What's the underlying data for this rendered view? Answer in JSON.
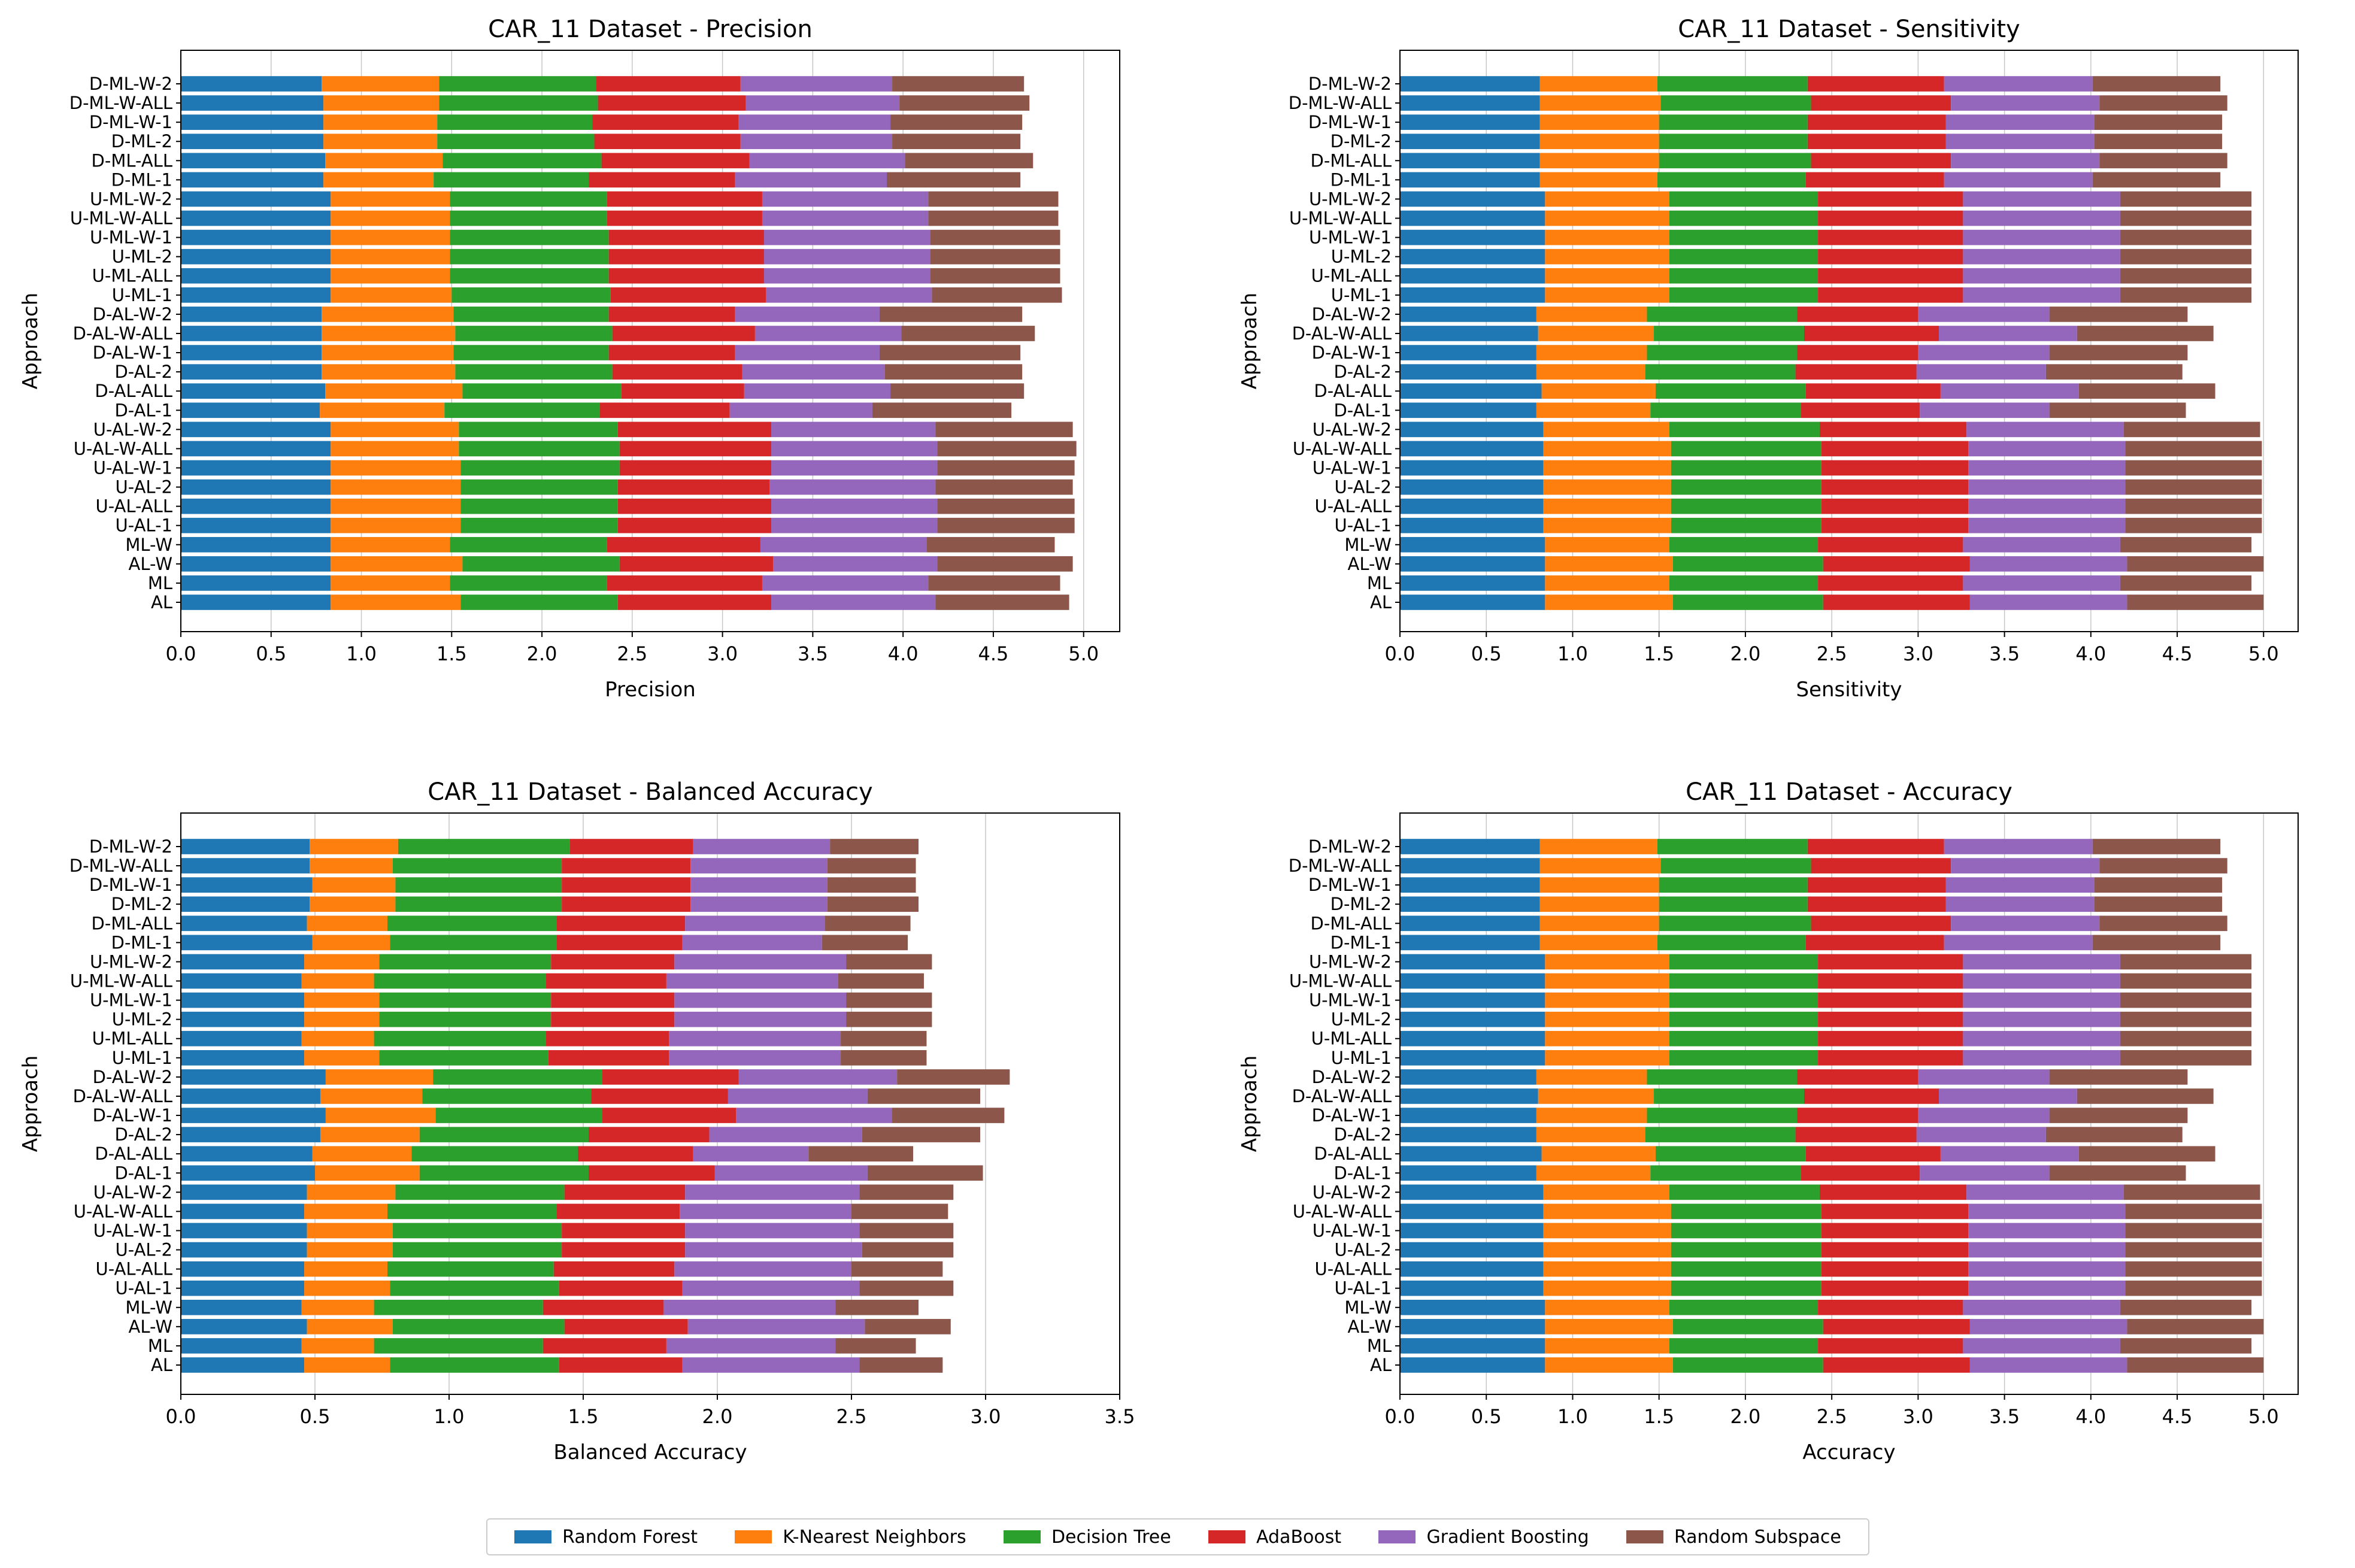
{
  "series_meta": [
    {
      "name": "Random Forest",
      "color": "#1f77b4"
    },
    {
      "name": "K-Nearest Neighbors",
      "color": "#ff7f0e"
    },
    {
      "name": "Decision Tree",
      "color": "#2ca02c"
    },
    {
      "name": "AdaBoost",
      "color": "#d62728"
    },
    {
      "name": "Gradient Boosting",
      "color": "#9467bd"
    },
    {
      "name": "Random Subspace",
      "color": "#8c564b"
    }
  ],
  "chart_data": [
    {
      "type": "bar",
      "orientation": "horizontal",
      "stacked": true,
      "title": "CAR_11 Dataset - Precision",
      "xlabel": "Precision",
      "ylabel": "Approach",
      "xlim": [
        0,
        5.2
      ],
      "xticks": [
        0.0,
        0.5,
        1.0,
        1.5,
        2.0,
        2.5,
        3.0,
        3.5,
        4.0,
        4.5,
        5.0
      ],
      "xtick_labels": [
        "0.0",
        "0.5",
        "1.0",
        "1.5",
        "2.0",
        "2.5",
        "3.0",
        "3.5",
        "4.0",
        "4.5",
        "5.0"
      ],
      "categories": [
        "D-ML-W-2",
        "D-ML-W-ALL",
        "D-ML-W-1",
        "D-ML-2",
        "D-ML-ALL",
        "D-ML-1",
        "U-ML-W-2",
        "U-ML-W-ALL",
        "U-ML-W-1",
        "U-ML-2",
        "U-ML-ALL",
        "U-ML-1",
        "D-AL-W-2",
        "D-AL-W-ALL",
        "D-AL-W-1",
        "D-AL-2",
        "D-AL-ALL",
        "D-AL-1",
        "U-AL-W-2",
        "U-AL-W-ALL",
        "U-AL-W-1",
        "U-AL-2",
        "U-AL-ALL",
        "U-AL-1",
        "ML-W",
        "AL-W",
        "ML",
        "AL"
      ],
      "series": [
        {
          "name": "Random Forest",
          "values": [
            0.78,
            0.79,
            0.79,
            0.79,
            0.8,
            0.79,
            0.83,
            0.83,
            0.83,
            0.83,
            0.83,
            0.83,
            0.78,
            0.78,
            0.78,
            0.78,
            0.8,
            0.77,
            0.83,
            0.83,
            0.83,
            0.83,
            0.83,
            0.83,
            0.83,
            0.83,
            0.83,
            0.83
          ]
        },
        {
          "name": "K-Nearest Neighbors",
          "values": [
            0.65,
            0.64,
            0.63,
            0.63,
            0.65,
            0.61,
            0.66,
            0.66,
            0.66,
            0.66,
            0.66,
            0.67,
            0.73,
            0.74,
            0.73,
            0.74,
            0.76,
            0.69,
            0.71,
            0.71,
            0.72,
            0.72,
            0.72,
            0.72,
            0.66,
            0.73,
            0.66,
            0.72
          ]
        },
        {
          "name": "Decision Tree",
          "values": [
            0.87,
            0.88,
            0.86,
            0.87,
            0.88,
            0.86,
            0.87,
            0.87,
            0.88,
            0.88,
            0.88,
            0.88,
            0.86,
            0.87,
            0.86,
            0.87,
            0.88,
            0.86,
            0.88,
            0.89,
            0.88,
            0.87,
            0.87,
            0.87,
            0.87,
            0.87,
            0.87,
            0.87
          ]
        },
        {
          "name": "AdaBoost",
          "values": [
            0.8,
            0.82,
            0.81,
            0.81,
            0.82,
            0.81,
            0.86,
            0.86,
            0.86,
            0.86,
            0.86,
            0.86,
            0.7,
            0.79,
            0.7,
            0.72,
            0.68,
            0.72,
            0.85,
            0.84,
            0.84,
            0.84,
            0.85,
            0.85,
            0.85,
            0.85,
            0.86,
            0.85
          ]
        },
        {
          "name": "Gradient Boosting",
          "values": [
            0.84,
            0.85,
            0.84,
            0.84,
            0.86,
            0.84,
            0.92,
            0.92,
            0.92,
            0.92,
            0.92,
            0.92,
            0.8,
            0.81,
            0.8,
            0.79,
            0.81,
            0.79,
            0.91,
            0.92,
            0.92,
            0.92,
            0.92,
            0.92,
            0.92,
            0.91,
            0.92,
            0.91
          ]
        },
        {
          "name": "Random Subspace",
          "values": [
            0.73,
            0.72,
            0.73,
            0.71,
            0.71,
            0.74,
            0.72,
            0.72,
            0.72,
            0.72,
            0.72,
            0.72,
            0.79,
            0.74,
            0.78,
            0.76,
            0.74,
            0.77,
            0.76,
            0.77,
            0.76,
            0.76,
            0.76,
            0.76,
            0.71,
            0.75,
            0.73,
            0.74
          ]
        }
      ]
    },
    {
      "type": "bar",
      "orientation": "horizontal",
      "stacked": true,
      "title": "CAR_11 Dataset - Sensitivity",
      "xlabel": "Sensitivity",
      "ylabel": "Approach",
      "xlim": [
        0,
        5.2
      ],
      "xticks": [
        0.0,
        0.5,
        1.0,
        1.5,
        2.0,
        2.5,
        3.0,
        3.5,
        4.0,
        4.5,
        5.0
      ],
      "xtick_labels": [
        "0.0",
        "0.5",
        "1.0",
        "1.5",
        "2.0",
        "2.5",
        "3.0",
        "3.5",
        "4.0",
        "4.5",
        "5.0"
      ],
      "categories": [
        "D-ML-W-2",
        "D-ML-W-ALL",
        "D-ML-W-1",
        "D-ML-2",
        "D-ML-ALL",
        "D-ML-1",
        "U-ML-W-2",
        "U-ML-W-ALL",
        "U-ML-W-1",
        "U-ML-2",
        "U-ML-ALL",
        "U-ML-1",
        "D-AL-W-2",
        "D-AL-W-ALL",
        "D-AL-W-1",
        "D-AL-2",
        "D-AL-ALL",
        "D-AL-1",
        "U-AL-W-2",
        "U-AL-W-ALL",
        "U-AL-W-1",
        "U-AL-2",
        "U-AL-ALL",
        "U-AL-1",
        "ML-W",
        "AL-W",
        "ML",
        "AL"
      ],
      "series": [
        {
          "name": "Random Forest",
          "values": [
            0.81,
            0.81,
            0.81,
            0.81,
            0.81,
            0.81,
            0.84,
            0.84,
            0.84,
            0.84,
            0.84,
            0.84,
            0.79,
            0.8,
            0.79,
            0.79,
            0.82,
            0.79,
            0.83,
            0.83,
            0.83,
            0.83,
            0.83,
            0.83,
            0.84,
            0.84,
            0.84,
            0.84
          ]
        },
        {
          "name": "K-Nearest Neighbors",
          "values": [
            0.68,
            0.7,
            0.69,
            0.69,
            0.69,
            0.68,
            0.72,
            0.72,
            0.72,
            0.72,
            0.72,
            0.72,
            0.64,
            0.67,
            0.64,
            0.63,
            0.66,
            0.66,
            0.73,
            0.74,
            0.74,
            0.74,
            0.74,
            0.74,
            0.72,
            0.74,
            0.72,
            0.74
          ]
        },
        {
          "name": "Decision Tree",
          "values": [
            0.87,
            0.87,
            0.86,
            0.86,
            0.88,
            0.86,
            0.86,
            0.86,
            0.86,
            0.86,
            0.86,
            0.86,
            0.87,
            0.87,
            0.87,
            0.87,
            0.87,
            0.87,
            0.87,
            0.87,
            0.87,
            0.87,
            0.87,
            0.87,
            0.86,
            0.87,
            0.86,
            0.87
          ]
        },
        {
          "name": "AdaBoost",
          "values": [
            0.79,
            0.81,
            0.8,
            0.8,
            0.81,
            0.8,
            0.84,
            0.84,
            0.84,
            0.84,
            0.84,
            0.84,
            0.7,
            0.78,
            0.7,
            0.7,
            0.78,
            0.69,
            0.85,
            0.85,
            0.85,
            0.85,
            0.85,
            0.85,
            0.84,
            0.85,
            0.84,
            0.85
          ]
        },
        {
          "name": "Gradient Boosting",
          "values": [
            0.86,
            0.86,
            0.86,
            0.86,
            0.86,
            0.86,
            0.91,
            0.91,
            0.91,
            0.91,
            0.91,
            0.91,
            0.76,
            0.8,
            0.76,
            0.75,
            0.8,
            0.75,
            0.91,
            0.91,
            0.91,
            0.91,
            0.91,
            0.91,
            0.91,
            0.91,
            0.91,
            0.91
          ]
        },
        {
          "name": "Random Subspace",
          "values": [
            0.74,
            0.74,
            0.74,
            0.74,
            0.74,
            0.74,
            0.76,
            0.76,
            0.76,
            0.76,
            0.76,
            0.76,
            0.8,
            0.79,
            0.8,
            0.79,
            0.79,
            0.79,
            0.79,
            0.79,
            0.79,
            0.79,
            0.79,
            0.79,
            0.76,
            0.79,
            0.76,
            0.79
          ]
        }
      ]
    },
    {
      "type": "bar",
      "orientation": "horizontal",
      "stacked": true,
      "title": "CAR_11 Dataset - Balanced Accuracy",
      "xlabel": "Balanced Accuracy",
      "ylabel": "Approach",
      "xlim": [
        0,
        3.5
      ],
      "xticks": [
        0.0,
        0.5,
        1.0,
        1.5,
        2.0,
        2.5,
        3.0,
        3.5
      ],
      "xtick_labels": [
        "0.0",
        "0.5",
        "1.0",
        "1.5",
        "2.0",
        "2.5",
        "3.0",
        "3.5"
      ],
      "categories": [
        "D-ML-W-2",
        "D-ML-W-ALL",
        "D-ML-W-1",
        "D-ML-2",
        "D-ML-ALL",
        "D-ML-1",
        "U-ML-W-2",
        "U-ML-W-ALL",
        "U-ML-W-1",
        "U-ML-2",
        "U-ML-ALL",
        "U-ML-1",
        "D-AL-W-2",
        "D-AL-W-ALL",
        "D-AL-W-1",
        "D-AL-2",
        "D-AL-ALL",
        "D-AL-1",
        "U-AL-W-2",
        "U-AL-W-ALL",
        "U-AL-W-1",
        "U-AL-2",
        "U-AL-ALL",
        "U-AL-1",
        "ML-W",
        "AL-W",
        "ML",
        "AL"
      ],
      "series": [
        {
          "name": "Random Forest",
          "values": [
            0.48,
            0.48,
            0.49,
            0.48,
            0.47,
            0.49,
            0.46,
            0.45,
            0.46,
            0.46,
            0.45,
            0.46,
            0.54,
            0.52,
            0.54,
            0.52,
            0.49,
            0.5,
            0.47,
            0.46,
            0.47,
            0.47,
            0.46,
            0.46,
            0.45,
            0.47,
            0.45,
            0.46
          ]
        },
        {
          "name": "K-Nearest Neighbors",
          "values": [
            0.33,
            0.31,
            0.31,
            0.32,
            0.3,
            0.29,
            0.28,
            0.27,
            0.28,
            0.28,
            0.27,
            0.28,
            0.4,
            0.38,
            0.41,
            0.37,
            0.37,
            0.39,
            0.33,
            0.31,
            0.32,
            0.32,
            0.31,
            0.32,
            0.27,
            0.32,
            0.27,
            0.32
          ]
        },
        {
          "name": "Decision Tree",
          "values": [
            0.64,
            0.63,
            0.62,
            0.62,
            0.63,
            0.62,
            0.64,
            0.64,
            0.64,
            0.64,
            0.64,
            0.63,
            0.63,
            0.63,
            0.62,
            0.63,
            0.62,
            0.63,
            0.63,
            0.63,
            0.63,
            0.63,
            0.62,
            0.63,
            0.63,
            0.64,
            0.63,
            0.63
          ]
        },
        {
          "name": "AdaBoost",
          "values": [
            0.46,
            0.48,
            0.48,
            0.48,
            0.48,
            0.47,
            0.46,
            0.45,
            0.46,
            0.46,
            0.46,
            0.45,
            0.51,
            0.51,
            0.5,
            0.45,
            0.43,
            0.47,
            0.45,
            0.46,
            0.46,
            0.46,
            0.45,
            0.46,
            0.45,
            0.46,
            0.46,
            0.46
          ]
        },
        {
          "name": "Gradient Boosting",
          "values": [
            0.51,
            0.51,
            0.51,
            0.51,
            0.52,
            0.52,
            0.64,
            0.64,
            0.64,
            0.64,
            0.64,
            0.64,
            0.59,
            0.52,
            0.58,
            0.57,
            0.43,
            0.57,
            0.65,
            0.64,
            0.65,
            0.66,
            0.66,
            0.66,
            0.64,
            0.66,
            0.63,
            0.66
          ]
        },
        {
          "name": "Random Subspace",
          "values": [
            0.33,
            0.33,
            0.33,
            0.34,
            0.32,
            0.32,
            0.32,
            0.32,
            0.32,
            0.32,
            0.32,
            0.32,
            0.42,
            0.42,
            0.42,
            0.44,
            0.39,
            0.43,
            0.35,
            0.36,
            0.35,
            0.34,
            0.34,
            0.35,
            0.31,
            0.32,
            0.3,
            0.31
          ]
        }
      ]
    },
    {
      "type": "bar",
      "orientation": "horizontal",
      "stacked": true,
      "title": "CAR_11 Dataset - Accuracy",
      "xlabel": "Accuracy",
      "ylabel": "Approach",
      "xlim": [
        0,
        5.2
      ],
      "xticks": [
        0.0,
        0.5,
        1.0,
        1.5,
        2.0,
        2.5,
        3.0,
        3.5,
        4.0,
        4.5,
        5.0
      ],
      "xtick_labels": [
        "0.0",
        "0.5",
        "1.0",
        "1.5",
        "2.0",
        "2.5",
        "3.0",
        "3.5",
        "4.0",
        "4.5",
        "5.0"
      ],
      "categories": [
        "D-ML-W-2",
        "D-ML-W-ALL",
        "D-ML-W-1",
        "D-ML-2",
        "D-ML-ALL",
        "D-ML-1",
        "U-ML-W-2",
        "U-ML-W-ALL",
        "U-ML-W-1",
        "U-ML-2",
        "U-ML-ALL",
        "U-ML-1",
        "D-AL-W-2",
        "D-AL-W-ALL",
        "D-AL-W-1",
        "D-AL-2",
        "D-AL-ALL",
        "D-AL-1",
        "U-AL-W-2",
        "U-AL-W-ALL",
        "U-AL-W-1",
        "U-AL-2",
        "U-AL-ALL",
        "U-AL-1",
        "ML-W",
        "AL-W",
        "ML",
        "AL"
      ],
      "series": [
        {
          "name": "Random Forest",
          "values": [
            0.81,
            0.81,
            0.81,
            0.81,
            0.81,
            0.81,
            0.84,
            0.84,
            0.84,
            0.84,
            0.84,
            0.84,
            0.79,
            0.8,
            0.79,
            0.79,
            0.82,
            0.79,
            0.83,
            0.83,
            0.83,
            0.83,
            0.83,
            0.83,
            0.84,
            0.84,
            0.84,
            0.84
          ]
        },
        {
          "name": "K-Nearest Neighbors",
          "values": [
            0.68,
            0.7,
            0.69,
            0.69,
            0.69,
            0.68,
            0.72,
            0.72,
            0.72,
            0.72,
            0.72,
            0.72,
            0.64,
            0.67,
            0.64,
            0.63,
            0.66,
            0.66,
            0.73,
            0.74,
            0.74,
            0.74,
            0.74,
            0.74,
            0.72,
            0.74,
            0.72,
            0.74
          ]
        },
        {
          "name": "Decision Tree",
          "values": [
            0.87,
            0.87,
            0.86,
            0.86,
            0.88,
            0.86,
            0.86,
            0.86,
            0.86,
            0.86,
            0.86,
            0.86,
            0.87,
            0.87,
            0.87,
            0.87,
            0.87,
            0.87,
            0.87,
            0.87,
            0.87,
            0.87,
            0.87,
            0.87,
            0.86,
            0.87,
            0.86,
            0.87
          ]
        },
        {
          "name": "AdaBoost",
          "values": [
            0.79,
            0.81,
            0.8,
            0.8,
            0.81,
            0.8,
            0.84,
            0.84,
            0.84,
            0.84,
            0.84,
            0.84,
            0.7,
            0.78,
            0.7,
            0.7,
            0.78,
            0.69,
            0.85,
            0.85,
            0.85,
            0.85,
            0.85,
            0.85,
            0.84,
            0.85,
            0.84,
            0.85
          ]
        },
        {
          "name": "Gradient Boosting",
          "values": [
            0.86,
            0.86,
            0.86,
            0.86,
            0.86,
            0.86,
            0.91,
            0.91,
            0.91,
            0.91,
            0.91,
            0.91,
            0.76,
            0.8,
            0.76,
            0.75,
            0.8,
            0.75,
            0.91,
            0.91,
            0.91,
            0.91,
            0.91,
            0.91,
            0.91,
            0.91,
            0.91,
            0.91
          ]
        },
        {
          "name": "Random Subspace",
          "values": [
            0.74,
            0.74,
            0.74,
            0.74,
            0.74,
            0.74,
            0.76,
            0.76,
            0.76,
            0.76,
            0.76,
            0.76,
            0.8,
            0.79,
            0.8,
            0.79,
            0.79,
            0.79,
            0.79,
            0.79,
            0.79,
            0.79,
            0.79,
            0.79,
            0.76,
            0.79,
            0.76,
            0.79
          ]
        }
      ]
    }
  ]
}
